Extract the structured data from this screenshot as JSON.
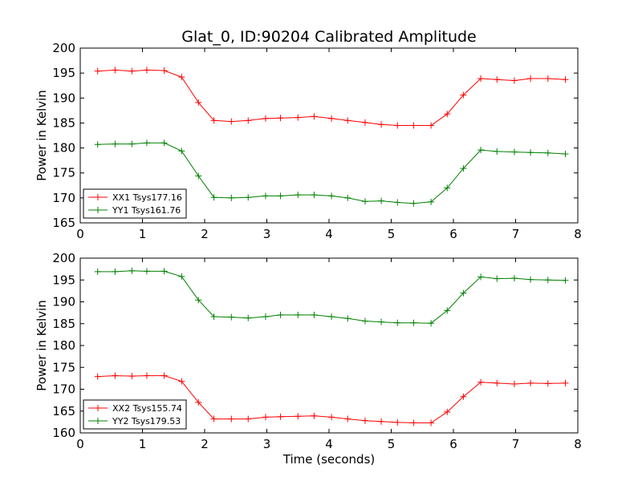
{
  "chart_data": [
    {
      "type": "line",
      "title": "Glat_0, ID:90204 Calibrated Amplitude",
      "xlabel": "",
      "ylabel": "Power in Kelvin",
      "xlim": [
        0,
        8
      ],
      "ylim": [
        165,
        200
      ],
      "xticks": [
        "0",
        "1",
        "2",
        "3",
        "4",
        "5",
        "6",
        "7",
        "8"
      ],
      "yticks": [
        "165",
        "170",
        "175",
        "180",
        "185",
        "190",
        "195",
        "200"
      ],
      "legend_position": "lower-left",
      "x": [
        0.28,
        0.56,
        0.83,
        1.07,
        1.35,
        1.63,
        1.9,
        2.15,
        2.43,
        2.7,
        2.98,
        3.22,
        3.5,
        3.76,
        4.04,
        4.3,
        4.58,
        4.84,
        5.1,
        5.36,
        5.64,
        5.9,
        6.16,
        6.44,
        6.7,
        6.98,
        7.24,
        7.52,
        7.8
      ],
      "series": [
        {
          "name": "XX1 Tsys177.16",
          "color": "#ff0000",
          "values": [
            195.4,
            195.6,
            195.4,
            195.6,
            195.5,
            194.2,
            189.1,
            185.5,
            185.3,
            185.5,
            185.9,
            186.0,
            186.1,
            186.3,
            185.9,
            185.5,
            185.1,
            184.7,
            184.5,
            184.5,
            184.5,
            186.8,
            190.6,
            193.9,
            193.7,
            193.5,
            193.9,
            193.9,
            193.7
          ]
        },
        {
          "name": "YY1 Tsys161.76",
          "color": "#008000",
          "values": [
            180.7,
            180.8,
            180.8,
            181.0,
            181.0,
            179.4,
            174.4,
            170.1,
            170.0,
            170.1,
            170.4,
            170.4,
            170.6,
            170.6,
            170.4,
            170.0,
            169.3,
            169.4,
            169.1,
            168.9,
            169.2,
            172.0,
            175.9,
            179.6,
            179.3,
            179.2,
            179.1,
            179.0,
            178.8
          ]
        }
      ]
    },
    {
      "type": "line",
      "title": "",
      "xlabel": "Time (seconds)",
      "ylabel": "Power in Kelvin",
      "xlim": [
        0,
        8
      ],
      "ylim": [
        160,
        200
      ],
      "xticks": [
        "0",
        "1",
        "2",
        "3",
        "4",
        "5",
        "6",
        "7",
        "8"
      ],
      "yticks": [
        "160",
        "165",
        "170",
        "175",
        "180",
        "185",
        "190",
        "195",
        "200"
      ],
      "legend_position": "lower-left",
      "x": [
        0.28,
        0.56,
        0.83,
        1.07,
        1.35,
        1.63,
        1.9,
        2.15,
        2.43,
        2.7,
        2.98,
        3.22,
        3.5,
        3.76,
        4.04,
        4.3,
        4.58,
        4.84,
        5.1,
        5.36,
        5.64,
        5.9,
        6.16,
        6.44,
        6.7,
        6.98,
        7.24,
        7.52,
        7.8
      ],
      "series": [
        {
          "name": "XX2 Tsys155.74",
          "color": "#ff0000",
          "values": [
            172.9,
            173.1,
            173.0,
            173.1,
            173.1,
            171.8,
            167.0,
            163.2,
            163.2,
            163.2,
            163.6,
            163.7,
            163.8,
            163.9,
            163.6,
            163.2,
            162.8,
            162.6,
            162.4,
            162.3,
            162.3,
            164.8,
            168.3,
            171.6,
            171.4,
            171.2,
            171.4,
            171.3,
            171.4
          ]
        },
        {
          "name": "YY2 Tsys179.53",
          "color": "#008000",
          "values": [
            196.9,
            196.9,
            197.1,
            197.0,
            197.0,
            195.8,
            190.4,
            186.6,
            186.5,
            186.3,
            186.6,
            187.0,
            187.0,
            187.0,
            186.6,
            186.2,
            185.6,
            185.4,
            185.2,
            185.2,
            185.1,
            188.0,
            192.0,
            195.7,
            195.3,
            195.4,
            195.1,
            195.0,
            194.9
          ]
        }
      ]
    }
  ]
}
